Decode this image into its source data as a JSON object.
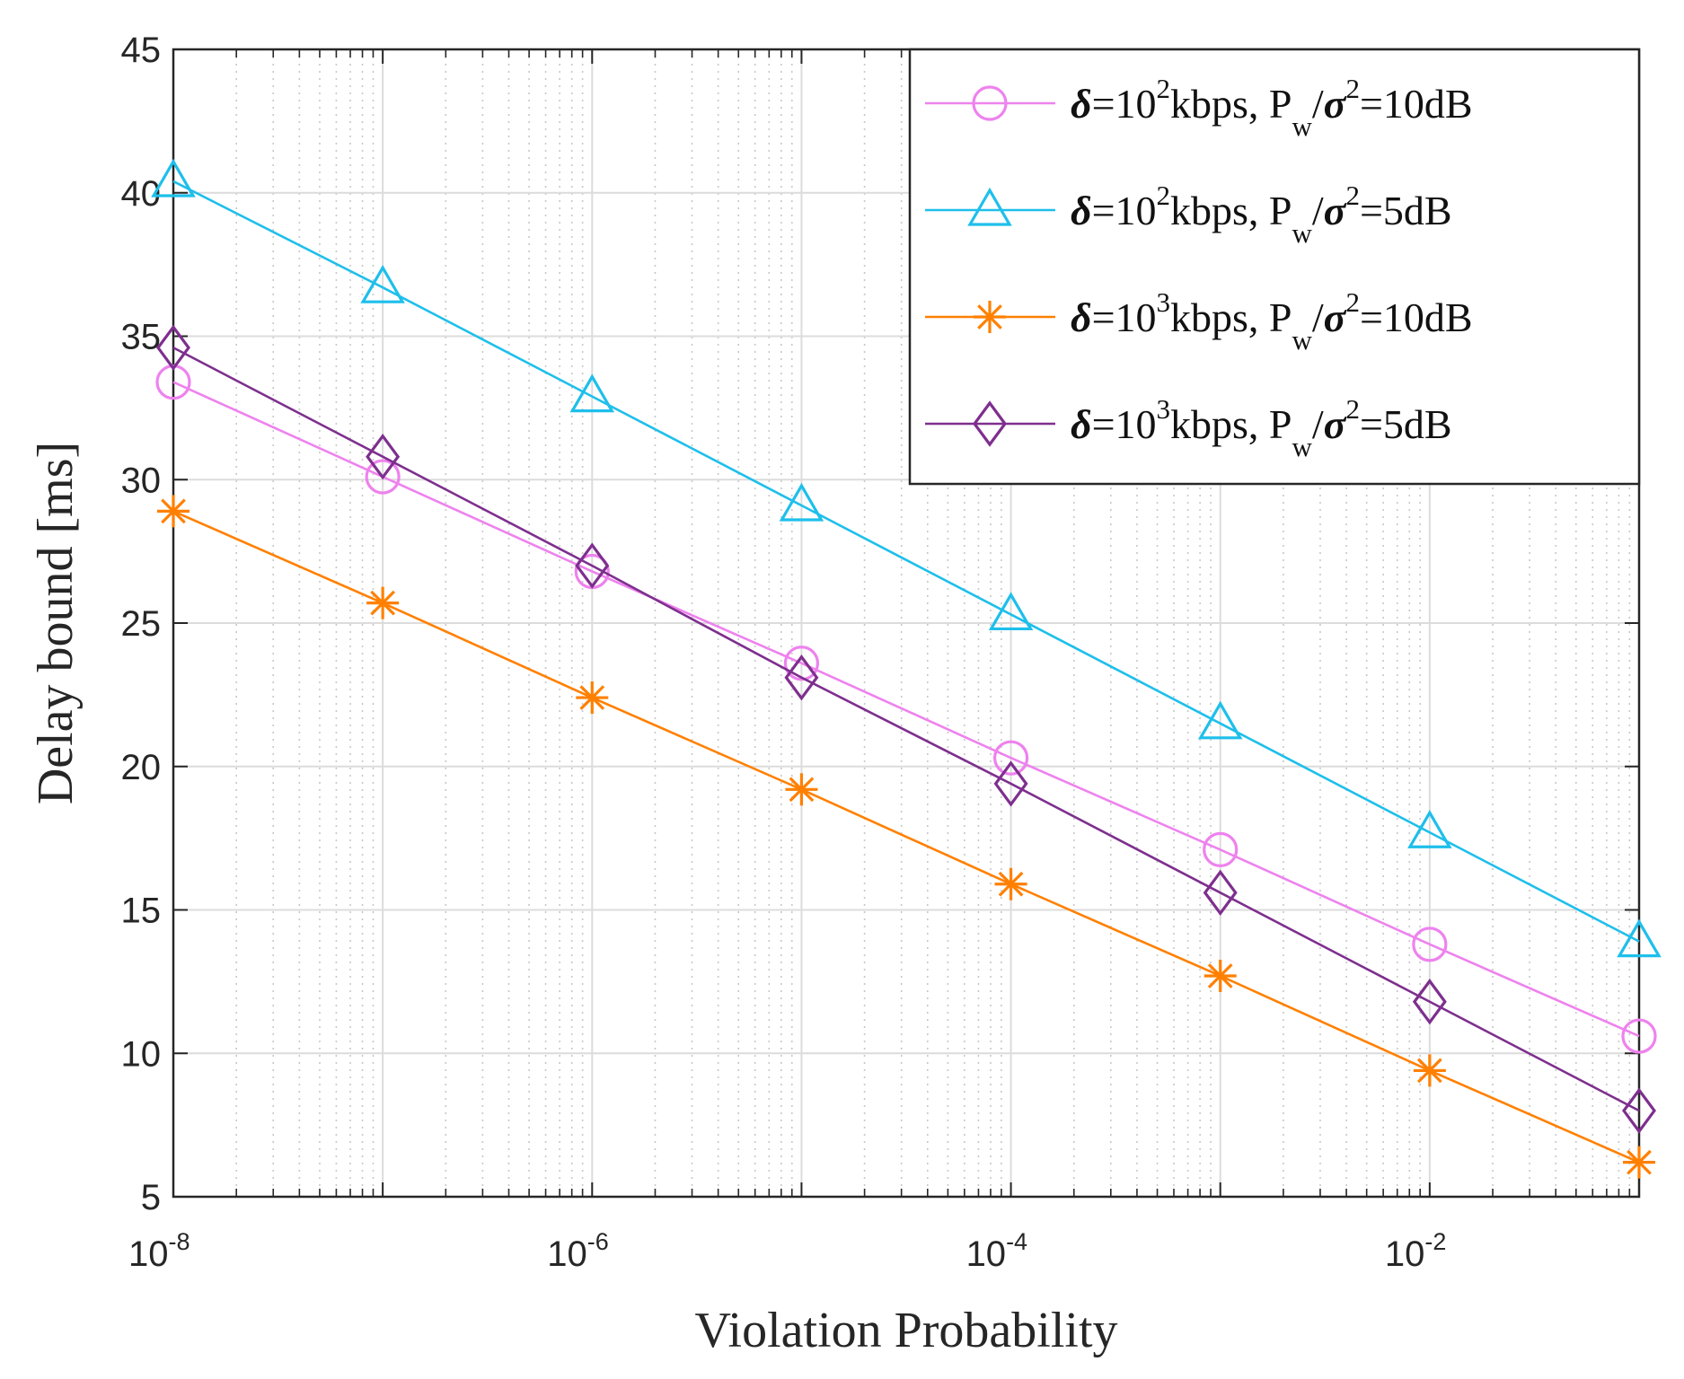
{
  "chart_data": {
    "type": "line",
    "title": "",
    "xlabel": "Violation Probability",
    "ylabel": "Delay bound [ms]",
    "xscale": "log",
    "xlim_exponents": [
      -8,
      -1
    ],
    "ylim": [
      5,
      45
    ],
    "yticks": [
      5,
      10,
      15,
      20,
      25,
      30,
      35,
      40,
      45
    ],
    "xticks": [
      {
        "exp": -8,
        "base": "10",
        "power": "-8"
      },
      {
        "exp": -6,
        "base": "10",
        "power": "-6"
      },
      {
        "exp": -4,
        "base": "10",
        "power": "-4"
      },
      {
        "exp": -2,
        "base": "10",
        "power": "-2"
      }
    ],
    "grid": true,
    "legend_position": "top-right",
    "x_exponents": [
      -8,
      -7,
      -6,
      -5,
      -4,
      -3,
      -2,
      -1
    ],
    "series": [
      {
        "name": "δ=10^2kbps, Pw/σ^2=10dB",
        "delta": "δ",
        "eq": "=10",
        "rate_exp": "2",
        "unit": "kbps, P",
        "p_sub": "w",
        "slash": "/",
        "sigma": "σ",
        "sigma_exp": "2",
        "snr": "=10dB",
        "color": "#EE82EE",
        "marker": "circle",
        "values": [
          33.4,
          30.1,
          26.8,
          23.6,
          20.3,
          17.1,
          13.8,
          10.6
        ]
      },
      {
        "name": "δ=10^2kbps, Pw/σ^2=5dB",
        "delta": "δ",
        "eq": "=10",
        "rate_exp": "2",
        "unit": "kbps, P",
        "p_sub": "w",
        "slash": "/",
        "sigma": "σ",
        "sigma_exp": "2",
        "snr": "=5dB",
        "color": "#1EBFEB",
        "marker": "triangle",
        "values": [
          40.4,
          36.7,
          32.9,
          29.1,
          25.3,
          21.5,
          17.7,
          13.9
        ]
      },
      {
        "name": "δ=10^3kbps, Pw/σ^2=10dB",
        "delta": "δ",
        "eq": "=10",
        "rate_exp": "3",
        "unit": "kbps, P",
        "p_sub": "w",
        "slash": "/",
        "sigma": "σ",
        "sigma_exp": "2",
        "snr": "=10dB",
        "color": "#FF8000",
        "marker": "asterisk",
        "values": [
          28.9,
          25.7,
          22.4,
          19.2,
          15.9,
          12.7,
          9.4,
          6.2
        ]
      },
      {
        "name": "δ=10^3kbps, Pw/σ^2=5dB",
        "delta": "δ",
        "eq": "=10",
        "rate_exp": "3",
        "unit": "kbps, P",
        "p_sub": "w",
        "slash": "/",
        "sigma": "σ",
        "sigma_exp": "2",
        "snr": "=5dB",
        "color": "#7E2F8E",
        "marker": "diamond",
        "values": [
          34.6,
          30.8,
          27.0,
          23.1,
          19.4,
          15.6,
          11.8,
          8.0
        ]
      }
    ]
  }
}
